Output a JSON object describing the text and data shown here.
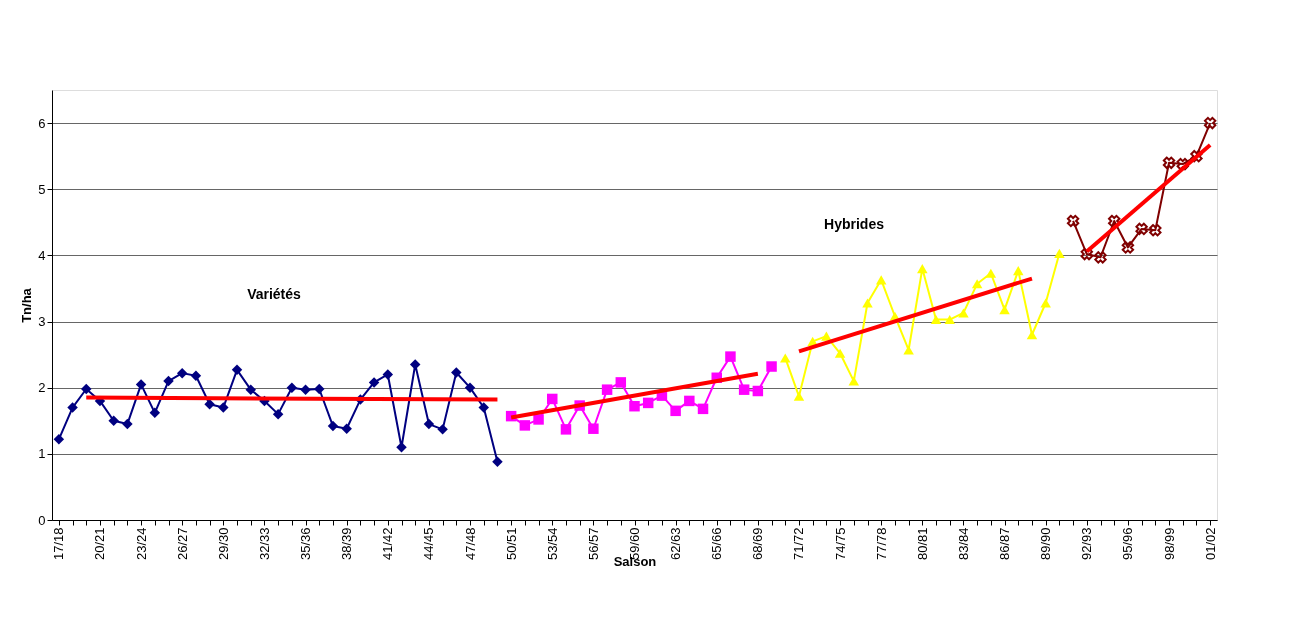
{
  "chart_data": {
    "type": "line",
    "xlabel": "Saison",
    "ylabel": "Tn/ha",
    "categories": [
      "17/18",
      null,
      null,
      "20/21",
      null,
      null,
      "23/24",
      null,
      null,
      "26/27",
      null,
      null,
      "29/30",
      null,
      null,
      "32/33",
      null,
      null,
      "35/36",
      null,
      null,
      "38/39",
      null,
      null,
      "41/42",
      null,
      null,
      "44/45",
      null,
      null,
      "47/48",
      null,
      null,
      "50/51",
      null,
      null,
      "53/54",
      null,
      null,
      "56/57",
      null,
      null,
      "59/60",
      null,
      null,
      "62/63",
      null,
      null,
      "65/66",
      null,
      null,
      "68/69",
      null,
      null,
      "71/72",
      null,
      null,
      "74/75",
      null,
      null,
      "77/78",
      null,
      null,
      "80/81",
      null,
      null,
      "83/84",
      null,
      null,
      "86/87",
      null,
      null,
      "89/90",
      null,
      null,
      "92/93",
      null,
      null,
      "95/96",
      null,
      null,
      "98/99",
      null,
      null,
      "01/02"
    ],
    "ylim": [
      0,
      6.5
    ],
    "yticks": [
      0,
      1,
      2,
      3,
      4,
      5,
      6
    ],
    "grid": "y",
    "legend": false,
    "series": [
      {
        "color": "#000080",
        "marker": "diamond",
        "values": [
          1.22,
          1.7,
          1.98,
          1.8,
          1.5,
          1.45,
          2.05,
          1.62,
          2.1,
          2.22,
          2.18,
          1.75,
          1.7,
          2.27,
          1.97,
          1.8,
          1.6,
          2.0,
          1.97,
          1.98,
          1.42,
          1.38,
          1.82,
          2.08,
          2.2,
          1.1,
          2.35,
          1.45,
          1.37,
          2.23,
          2.0,
          1.7,
          0.88,
          null,
          null,
          null,
          null,
          null,
          null,
          null,
          null,
          null,
          null,
          null,
          null,
          null,
          null,
          null,
          null,
          null,
          null,
          null,
          null,
          null,
          null,
          null,
          null,
          null,
          null,
          null,
          null,
          null,
          null,
          null,
          null,
          null,
          null,
          null,
          null,
          null,
          null,
          null,
          null,
          null,
          null,
          null,
          null,
          null,
          null,
          null,
          null,
          null,
          null,
          null,
          null
        ]
      },
      {
        "color": "#ff00ff",
        "marker": "square",
        "values": [
          null,
          null,
          null,
          null,
          null,
          null,
          null,
          null,
          null,
          null,
          null,
          null,
          null,
          null,
          null,
          null,
          null,
          null,
          null,
          null,
          null,
          null,
          null,
          null,
          null,
          null,
          null,
          null,
          null,
          null,
          null,
          null,
          null,
          1.57,
          1.43,
          1.52,
          1.83,
          1.37,
          1.73,
          1.38,
          1.97,
          2.08,
          1.72,
          1.77,
          1.88,
          1.65,
          1.8,
          1.68,
          2.15,
          2.47,
          1.97,
          1.95,
          2.32,
          null,
          null,
          null,
          null,
          null,
          null,
          null,
          null,
          null,
          null,
          null,
          null,
          null,
          null,
          null,
          null,
          null,
          null,
          null,
          null,
          null,
          null,
          null,
          null,
          null,
          null,
          null,
          null,
          null,
          null,
          null,
          null
        ]
      },
      {
        "color": "#ffff00",
        "marker": "triangle",
        "values": [
          null,
          null,
          null,
          null,
          null,
          null,
          null,
          null,
          null,
          null,
          null,
          null,
          null,
          null,
          null,
          null,
          null,
          null,
          null,
          null,
          null,
          null,
          null,
          null,
          null,
          null,
          null,
          null,
          null,
          null,
          null,
          null,
          null,
          null,
          null,
          null,
          null,
          null,
          null,
          null,
          null,
          null,
          null,
          null,
          null,
          null,
          null,
          null,
          null,
          null,
          null,
          null,
          null,
          2.45,
          1.87,
          2.7,
          2.78,
          2.52,
          2.1,
          3.28,
          3.63,
          3.08,
          2.57,
          3.8,
          3.03,
          3.03,
          3.13,
          3.57,
          3.73,
          3.18,
          3.77,
          2.8,
          3.28,
          4.03,
          null,
          null,
          null,
          null,
          null,
          null,
          null,
          null,
          null,
          null,
          null
        ]
      },
      {
        "color": "#800000",
        "marker": "cross",
        "values": [
          null,
          null,
          null,
          null,
          null,
          null,
          null,
          null,
          null,
          null,
          null,
          null,
          null,
          null,
          null,
          null,
          null,
          null,
          null,
          null,
          null,
          null,
          null,
          null,
          null,
          null,
          null,
          null,
          null,
          null,
          null,
          null,
          null,
          null,
          null,
          null,
          null,
          null,
          null,
          null,
          null,
          null,
          null,
          null,
          null,
          null,
          null,
          null,
          null,
          null,
          null,
          null,
          null,
          null,
          null,
          null,
          null,
          null,
          null,
          null,
          null,
          null,
          null,
          null,
          null,
          null,
          null,
          null,
          null,
          null,
          null,
          null,
          null,
          null,
          4.52,
          4.02,
          3.97,
          4.52,
          4.12,
          4.4,
          4.38,
          5.4,
          5.38,
          5.5,
          6.0
        ]
      },
      {
        "color": "#ff0000",
        "marker": "none",
        "values": [
          null,
          null,
          1.85,
          null,
          null,
          null,
          null,
          null,
          null,
          null,
          null,
          null,
          null,
          null,
          null,
          null,
          null,
          null,
          null,
          null,
          null,
          null,
          null,
          null,
          null,
          null,
          null,
          null,
          null,
          null,
          null,
          null,
          1.82,
          null,
          null,
          null,
          null,
          null,
          null,
          null,
          null,
          null,
          null,
          null,
          null,
          null,
          null,
          null,
          null,
          null,
          null,
          null,
          null,
          null,
          null,
          null,
          null,
          null,
          null,
          null,
          null,
          null,
          null,
          null,
          null,
          null,
          null,
          null,
          null,
          null,
          null,
          null,
          null,
          null,
          null,
          null,
          null,
          null,
          null,
          null,
          null,
          null,
          null,
          null,
          null
        ]
      },
      {
        "color": "#ff0000",
        "marker": "none",
        "values": [
          null,
          null,
          null,
          null,
          null,
          null,
          null,
          null,
          null,
          null,
          null,
          null,
          null,
          null,
          null,
          null,
          null,
          null,
          null,
          null,
          null,
          null,
          null,
          null,
          null,
          null,
          null,
          null,
          null,
          null,
          null,
          null,
          null,
          1.55,
          null,
          null,
          null,
          null,
          null,
          null,
          null,
          null,
          null,
          null,
          null,
          null,
          null,
          null,
          null,
          null,
          null,
          2.21,
          null,
          null,
          null,
          null,
          null,
          null,
          null,
          null,
          null,
          null,
          null,
          null,
          null,
          null,
          null,
          null,
          null,
          null,
          null,
          null,
          null,
          null,
          null,
          null,
          null,
          null,
          null,
          null,
          null,
          null,
          null,
          null,
          null
        ]
      },
      {
        "color": "#ff0000",
        "marker": "none",
        "values": [
          null,
          null,
          null,
          null,
          null,
          null,
          null,
          null,
          null,
          null,
          null,
          null,
          null,
          null,
          null,
          null,
          null,
          null,
          null,
          null,
          null,
          null,
          null,
          null,
          null,
          null,
          null,
          null,
          null,
          null,
          null,
          null,
          null,
          null,
          null,
          null,
          null,
          null,
          null,
          null,
          null,
          null,
          null,
          null,
          null,
          null,
          null,
          null,
          null,
          null,
          null,
          null,
          null,
          null,
          2.55,
          null,
          null,
          null,
          null,
          null,
          null,
          null,
          null,
          null,
          null,
          null,
          null,
          null,
          null,
          null,
          null,
          3.65,
          null,
          null,
          null,
          null,
          null,
          null,
          null,
          null,
          null,
          null,
          null,
          null,
          null
        ]
      },
      {
        "color": "#ff0000",
        "marker": "none",
        "values": [
          null,
          null,
          null,
          null,
          null,
          null,
          null,
          null,
          null,
          null,
          null,
          null,
          null,
          null,
          null,
          null,
          null,
          null,
          null,
          null,
          null,
          null,
          null,
          null,
          null,
          null,
          null,
          null,
          null,
          null,
          null,
          null,
          null,
          null,
          null,
          null,
          null,
          null,
          null,
          null,
          null,
          null,
          null,
          null,
          null,
          null,
          null,
          null,
          null,
          null,
          null,
          null,
          null,
          null,
          null,
          null,
          null,
          null,
          null,
          null,
          null,
          null,
          null,
          null,
          null,
          null,
          null,
          null,
          null,
          null,
          null,
          null,
          null,
          null,
          null,
          4.06,
          null,
          null,
          null,
          null,
          null,
          null,
          null,
          null,
          5.67
        ]
      }
    ],
    "annotations": [
      "Variétés",
      "Hybrides"
    ]
  }
}
